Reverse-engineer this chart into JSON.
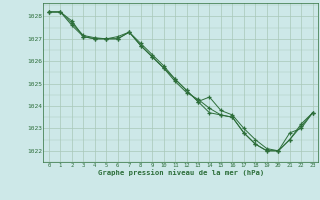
{
  "background_color": "#cde8e8",
  "plot_bg_color": "#cde8e8",
  "grid_color": "#a8c8b8",
  "line_color": "#2d6e3a",
  "marker_color": "#2d6e3a",
  "xlabel": "Graphe pression niveau de la mer (hPa)",
  "xlim": [
    -0.5,
    23.5
  ],
  "ylim": [
    1021.5,
    1028.6
  ],
  "yticks": [
    1022,
    1023,
    1024,
    1025,
    1026,
    1027,
    1028
  ],
  "xticks": [
    0,
    1,
    2,
    3,
    4,
    5,
    6,
    7,
    8,
    9,
    10,
    11,
    12,
    13,
    14,
    15,
    16,
    17,
    18,
    19,
    20,
    21,
    22,
    23
  ],
  "series1_x": [
    0,
    1,
    2,
    3,
    4,
    5,
    6,
    7,
    8,
    9,
    10,
    11,
    12,
    13,
    14,
    15,
    16,
    17,
    18,
    19,
    20,
    21,
    22,
    23
  ],
  "series1_y": [
    1028.2,
    1028.2,
    1027.8,
    1027.1,
    1027.0,
    1027.0,
    1027.0,
    1027.3,
    1026.8,
    1026.3,
    1025.8,
    1025.2,
    1024.7,
    1024.2,
    1023.7,
    1023.6,
    1023.5,
    1022.8,
    1022.3,
    1022.0,
    1022.0,
    1022.8,
    1023.0,
    1023.7
  ],
  "series2_x": [
    0,
    1,
    2,
    3,
    4,
    5,
    6,
    7,
    8,
    9,
    10,
    11,
    12,
    13,
    14,
    15,
    16,
    17,
    18,
    19,
    20,
    21,
    22,
    23
  ],
  "series2_y": [
    1028.2,
    1028.2,
    1027.6,
    1027.1,
    1027.0,
    1027.0,
    1027.1,
    1027.3,
    1026.7,
    1026.2,
    1025.7,
    1025.2,
    1024.7,
    1024.2,
    1024.4,
    1023.8,
    1023.6,
    1023.0,
    1022.5,
    1022.1,
    1022.0,
    1022.5,
    1023.2,
    1023.7
  ],
  "series3_x": [
    0,
    1,
    2,
    3,
    4,
    5,
    6,
    7,
    8,
    9,
    10,
    11,
    12,
    13,
    14,
    15,
    16,
    17,
    18,
    19,
    20,
    21,
    22,
    23
  ],
  "series3_y": [
    1028.2,
    1028.2,
    1027.7,
    1027.15,
    1027.05,
    1027.0,
    1027.0,
    1027.3,
    1026.7,
    1026.2,
    1025.7,
    1025.1,
    1024.6,
    1024.3,
    1023.9,
    1023.6,
    1023.5,
    1022.8,
    1022.3,
    1022.0,
    1022.0,
    1022.5,
    1023.1,
    1023.7
  ]
}
